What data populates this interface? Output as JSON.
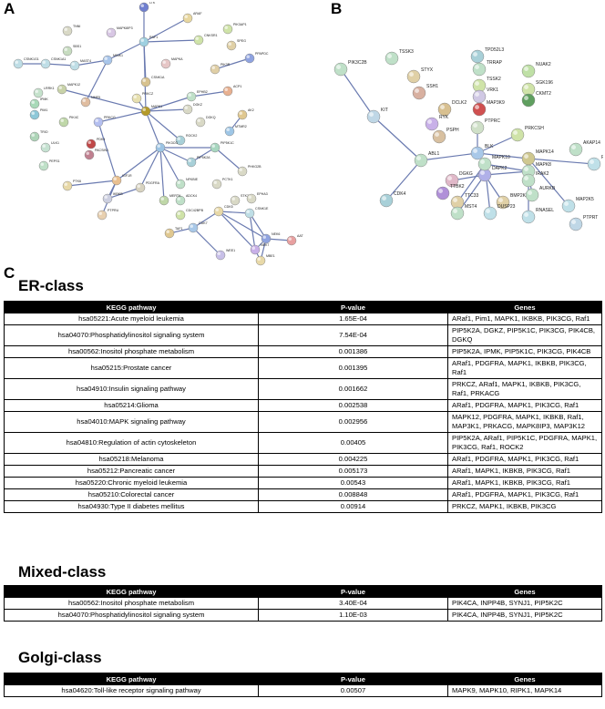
{
  "panels": {
    "a": "A",
    "b": "B",
    "c": "C"
  },
  "network_a": {
    "nodes": [
      {
        "id": "LTK",
        "label": "LTK",
        "color": "#6f7fd0"
      },
      {
        "id": "ARAF",
        "label": "ARAF",
        "color": "#e8d7a0"
      },
      {
        "id": "TNNI",
        "label": "TNNI",
        "color": "#d9d9c6"
      },
      {
        "id": "MAPK8IP3",
        "label": "MAPK8IP3",
        "color": "#d8c7e4"
      },
      {
        "id": "RAF1",
        "label": "RAF1",
        "color": "#9fd0e0"
      },
      {
        "id": "CNKSR1",
        "label": "CNKSR1",
        "color": "#cfe3a8"
      },
      {
        "id": "PIK3AP1",
        "label": "PIK3AP1",
        "color": "#cfe3a8"
      },
      {
        "id": "SPEG",
        "label": "SPEG",
        "color": "#e0d0a6"
      },
      {
        "id": "SBS1",
        "label": "SBS1",
        "color": "#c7dcc0"
      },
      {
        "id": "CSNK1G1",
        "label": "CSNK1G1",
        "color": "#bfdee6"
      },
      {
        "id": "CSNK1A1",
        "label": "CSNK1A1",
        "color": "#bfdee6"
      },
      {
        "id": "MAST4",
        "label": "MAST4",
        "color": "#bfdee6"
      },
      {
        "id": "MINK1",
        "label": "MINK1",
        "color": "#a8c5ea"
      },
      {
        "id": "MAPKA",
        "label": "MAPKA",
        "color": "#e6c6c6"
      },
      {
        "id": "PIK3R",
        "label": "PIK3R",
        "color": "#e0cfa6"
      },
      {
        "id": "PPAPDC",
        "label": "PPAPDC",
        "color": "#8fa3e0"
      },
      {
        "id": "CSNK1A",
        "label": "CSNK1A",
        "color": "#d7c28f"
      },
      {
        "id": "PRKCZ",
        "label": "PRKCZ",
        "color": "#e7e0b0"
      },
      {
        "id": "EPHB2",
        "label": "EPHB2",
        "color": "#bfe0c8"
      },
      {
        "id": "ACP1",
        "label": "ACP1",
        "color": "#e8b090"
      },
      {
        "id": "MAPK12",
        "label": "MAPK12",
        "color": "#c8d2a8"
      },
      {
        "id": "LRRK1",
        "label": "LRRK1",
        "color": "#c5e2cc"
      },
      {
        "id": "IPMK",
        "label": "IPMK",
        "color": "#a8d9b8"
      },
      {
        "id": "PIM1",
        "label": "PIM1",
        "color": "#8fc8d8"
      },
      {
        "id": "NME5",
        "label": "NME5",
        "color": "#e0bda0"
      },
      {
        "id": "MAPK1",
        "label": "MAPK1",
        "color": "#b49a2a"
      },
      {
        "id": "DGKZ",
        "label": "DGKZ",
        "color": "#d9d9c6"
      },
      {
        "id": "DGKQ",
        "label": "DGKQ",
        "color": "#d9d9c6"
      },
      {
        "id": "ROCK2",
        "label": "ROCK2",
        "color": "#a8d0d8"
      },
      {
        "id": "AK2",
        "label": "AK2",
        "color": "#e0c890"
      },
      {
        "id": "MTMR2",
        "label": "MTMR2",
        "color": "#9ec6e6"
      },
      {
        "id": "PIK4C",
        "label": "PIK4C",
        "color": "#bfd7a8"
      },
      {
        "id": "TRIO",
        "label": "TRIO",
        "color": "#aed5b8"
      },
      {
        "id": "ULK1",
        "label": "ULK1",
        "color": "#c6e2d2"
      },
      {
        "id": "PRKCG",
        "label": "PRKCG",
        "color": "#b4bff0"
      },
      {
        "id": "PDK4",
        "label": "PDK4",
        "color": "#c04848"
      },
      {
        "id": "PACSIN1",
        "label": "PACSIN1",
        "color": "#c08090"
      },
      {
        "id": "PIK3CG",
        "label": "PIK3CG",
        "color": "#9cc4e4"
      },
      {
        "id": "PIP5K1C",
        "label": "PIP5K1C",
        "color": "#a8d7c0"
      },
      {
        "id": "PIP5K2A",
        "label": "PIP5K2A",
        "color": "#a8d0d8"
      },
      {
        "id": "PHKG2B",
        "label": "PHKG2B",
        "color": "#d9d9c6"
      },
      {
        "id": "PEPS1",
        "label": "PEPS1",
        "color": "#bfe0c8"
      },
      {
        "id": "PTK6",
        "label": "PTK6",
        "color": "#e8d9a8"
      },
      {
        "id": "IGF1R",
        "label": "IGF1R",
        "color": "#e9c090"
      },
      {
        "id": "PDGFRA",
        "label": "PDGFRA",
        "color": "#d8d3c0"
      },
      {
        "id": "IKBKB",
        "label": "IKBKB",
        "color": "#cccfe0"
      },
      {
        "id": "PCTK1",
        "label": "PCTK1",
        "color": "#d9d9c6"
      },
      {
        "id": "NFKBIE",
        "label": "NFKBIE",
        "color": "#bfe0c8"
      },
      {
        "id": "PTPRU",
        "label": "PTPRU",
        "color": "#e8d0b0"
      },
      {
        "id": "TAF1",
        "label": "TAF1",
        "color": "#e0c890"
      },
      {
        "id": "CDK7",
        "label": "CDK7",
        "color": "#a8c8e8"
      },
      {
        "id": "CDK5",
        "label": "CDK5",
        "color": "#e8d9a8"
      },
      {
        "id": "ADCK4",
        "label": "ADCK4",
        "color": "#bfe0c8"
      },
      {
        "id": "CDC42BPB",
        "label": "CDC42BPB",
        "color": "#cfe3a8"
      },
      {
        "id": "MERTK",
        "label": "MERTK",
        "color": "#bfd7a8"
      },
      {
        "id": "STK31",
        "label": "STK31",
        "color": "#d9d9c6"
      },
      {
        "id": "EPHA3",
        "label": "EPHA3",
        "color": "#d9d9c6"
      },
      {
        "id": "CSNK1E",
        "label": "CSNK1E",
        "color": "#bfdee6"
      },
      {
        "id": "AAT",
        "label": "AAT",
        "color": "#e8a0a0"
      },
      {
        "id": "WEE1",
        "label": "WEE1",
        "color": "#c8c0e8"
      },
      {
        "id": "NEK6",
        "label": "NEK6",
        "color": "#8fa3e0"
      },
      {
        "id": "NEK7",
        "label": "NEK7",
        "color": "#c8b0e8"
      },
      {
        "id": "MBE1",
        "label": "MBE1",
        "color": "#e8d9a8"
      }
    ]
  },
  "network_b": {
    "nodes": [
      {
        "id": "PIK3C2B",
        "label": "PIK3C2B",
        "color": "#bfe0c8"
      },
      {
        "id": "TSSK3",
        "label": "TSSK3",
        "color": "#bfe0c8"
      },
      {
        "id": "STYX",
        "label": "STYX",
        "color": "#e0d0a6"
      },
      {
        "id": "TPD52L3",
        "label": "TPD52L3",
        "color": "#a8d0d8"
      },
      {
        "id": "TRRAP",
        "label": "TRRAP",
        "color": "#bfe0c8"
      },
      {
        "id": "NUAK2",
        "label": "NUAK2",
        "color": "#bfe0a6"
      },
      {
        "id": "SGK196",
        "label": "SGK196",
        "color": "#cfe3a8"
      },
      {
        "id": "CKMT2",
        "label": "CKMT2",
        "color": "#5f9f5f"
      },
      {
        "id": "SSH1",
        "label": "SSH1",
        "color": "#d8b0a0"
      },
      {
        "id": "TSSK2",
        "label": "TSSK2",
        "color": "#cfe3a8"
      },
      {
        "id": "VRK1",
        "label": "VRK1",
        "color": "#d0c8e4"
      },
      {
        "id": "DCLK2",
        "label": "DCLK2",
        "color": "#d8c090"
      },
      {
        "id": "MAP3K9",
        "label": "MAP3K9",
        "color": "#d05050"
      },
      {
        "id": "KIT",
        "label": "KIT",
        "color": "#bfd7e6"
      },
      {
        "id": "RYK",
        "label": "RYK",
        "color": "#c8b0e8"
      },
      {
        "id": "PSPH",
        "label": "PSPH",
        "color": "#d8c0a0"
      },
      {
        "id": "PRKCSH",
        "label": "PRKCSH",
        "color": "#cfe3a8"
      },
      {
        "id": "PTPRC",
        "label": "PTPRC",
        "color": "#cfe0c8"
      },
      {
        "id": "ABL1",
        "label": "ABL1",
        "color": "#bfe0c8"
      },
      {
        "id": "BLK",
        "label": "BLK",
        "color": "#a8c8e8"
      },
      {
        "id": "MAPK14",
        "label": "MAPK14",
        "color": "#cfc890"
      },
      {
        "id": "AKAP14",
        "label": "AKAP14",
        "color": "#bfe0c8"
      },
      {
        "id": "RIPK1",
        "label": "RIPK1",
        "color": "#bfe0e8"
      },
      {
        "id": "MAPK8",
        "label": "MAPK8",
        "color": "#bfe0c8"
      },
      {
        "id": "DAPK2",
        "label": "DAPK2",
        "color": "#b0b0e8"
      },
      {
        "id": "MAPK10",
        "label": "MAPK10",
        "color": "#bfe0c8"
      },
      {
        "id": "IRAK2",
        "label": "IRAK2",
        "color": "#bfe0c8"
      },
      {
        "id": "DGKG",
        "label": "DGKG",
        "color": "#e0b8c8"
      },
      {
        "id": "TTBK2",
        "label": "TTBK2",
        "color": "#b090d8"
      },
      {
        "id": "TTC33",
        "label": "TTC33",
        "color": "#e0d0a6"
      },
      {
        "id": "CDK4",
        "label": "CDK4",
        "color": "#a8d0d8"
      },
      {
        "id": "BMP2K",
        "label": "BMP2K",
        "color": "#e0d0a6"
      },
      {
        "id": "AURKB",
        "label": "AURKB",
        "color": "#bfe0c8"
      },
      {
        "id": "MAP2K5",
        "label": "MAP2K5",
        "color": "#bfe0e8"
      },
      {
        "id": "MST4",
        "label": "MST4",
        "color": "#bfe0c8"
      },
      {
        "id": "DUSP23",
        "label": "DUSP23",
        "color": "#bfe0e8"
      },
      {
        "id": "RNASEL",
        "label": "RNASEL",
        "color": "#bfe0e8"
      },
      {
        "id": "PTPRT",
        "label": "PTPRT",
        "color": "#bfd7e6"
      }
    ]
  },
  "er_class": {
    "title": "ER-class",
    "headers": [
      "KEGG pathway",
      "P-value",
      "Genes"
    ],
    "rows": [
      {
        "pathway": "hsa05221:Acute myeloid leukemia",
        "pvalue": "1.65E-04",
        "genes": "ARaf1, Pim1, MAPK1, IKBKB, PIK3CG, Raf1"
      },
      {
        "pathway": "hsa04070:Phosphatidylinositol signaling system",
        "pvalue": "7.54E-04",
        "genes": "PIP5K2A, DGKZ, PIP5K1C, PIK3CG, PIK4CB, DGKQ"
      },
      {
        "pathway": "hsa00562:Inositol phosphate metabolism",
        "pvalue": "0.001386",
        "genes": "PIP5K2A, IPMK, PIP5K1C, PIK3CG, PIK4CB"
      },
      {
        "pathway": "hsa05215:Prostate cancer",
        "pvalue": "0.001395",
        "genes": "ARaf1, PDGFRA, MAPK1, IKBKB, PIK3CG, Raf1"
      },
      {
        "pathway": "hsa04910:Insulin signaling pathway",
        "pvalue": "0.001662",
        "genes": "PRKCZ, ARaf1, MAPK1, IKBKB, PIK3CG, Raf1, PRKACG"
      },
      {
        "pathway": "hsa05214:Glioma",
        "pvalue": "0.002538",
        "genes": "ARaf1, PDGFRA, MAPK1, PIK3CG, Raf1"
      },
      {
        "pathway": "hsa04010:MAPK signaling pathway",
        "pvalue": "0.002956",
        "genes": "MAPK12, PDGFRA, MAPK1, IKBKB, Raf1, MAP3K1, PRKACG, MAPK8IP3, MAP3K12"
      },
      {
        "pathway": "hsa04810:Regulation of actin cytoskeleton",
        "pvalue": "0.00405",
        "genes": "PIP5K2A, ARaf1, PIP5K1C, PDGFRA, MAPK1, PIK3CG, Raf1, ROCK2"
      },
      {
        "pathway": "hsa05218:Melanoma",
        "pvalue": "0.004225",
        "genes": "ARaf1, PDGFRA, MAPK1, PIK3CG, Raf1"
      },
      {
        "pathway": "hsa05212:Pancreatic cancer",
        "pvalue": "0.005173",
        "genes": "ARaf1, MAPK1, IKBKB, PIK3CG, Raf1"
      },
      {
        "pathway": "hsa05220:Chronic myeloid leukemia",
        "pvalue": "0.00543",
        "genes": "ARaf1, MAPK1, IKBKB, PIK3CG, Raf1"
      },
      {
        "pathway": "hsa05210:Colorectal cancer",
        "pvalue": "0.008848",
        "genes": "ARaf1, PDGFRA, MAPK1, PIK3CG, Raf1"
      },
      {
        "pathway": "hsa04930:Type II diabetes mellitus",
        "pvalue": "0.00914",
        "genes": "PRKCZ, MAPK1, IKBKB, PIK3CG"
      }
    ]
  },
  "mixed_class": {
    "title": "Mixed-class",
    "headers": [
      "KEGG pathway",
      "P-value",
      "Genes"
    ],
    "rows": [
      {
        "pathway": "hsa00562:Inositol phosphate metabolism",
        "pvalue": "3.40E-04",
        "genes": "PIK4CA, INPP4B, SYNJ1, PIP5K2C"
      },
      {
        "pathway": "hsa04070:Phosphatidylinositol signaling system",
        "pvalue": "1.10E-03",
        "genes": "PIK4CA, INPP4B, SYNJ1, PIP5K2C"
      }
    ]
  },
  "golgi_class": {
    "title": "Golgi-class",
    "headers": [
      "KEGG pathway",
      "P-value",
      "Genes"
    ],
    "rows": [
      {
        "pathway": "hsa04620:Toll-like receptor signaling pathway",
        "pvalue": "0.00507",
        "genes": "MAPK9, MAPK10, RIPK1, MAPK14"
      }
    ]
  }
}
